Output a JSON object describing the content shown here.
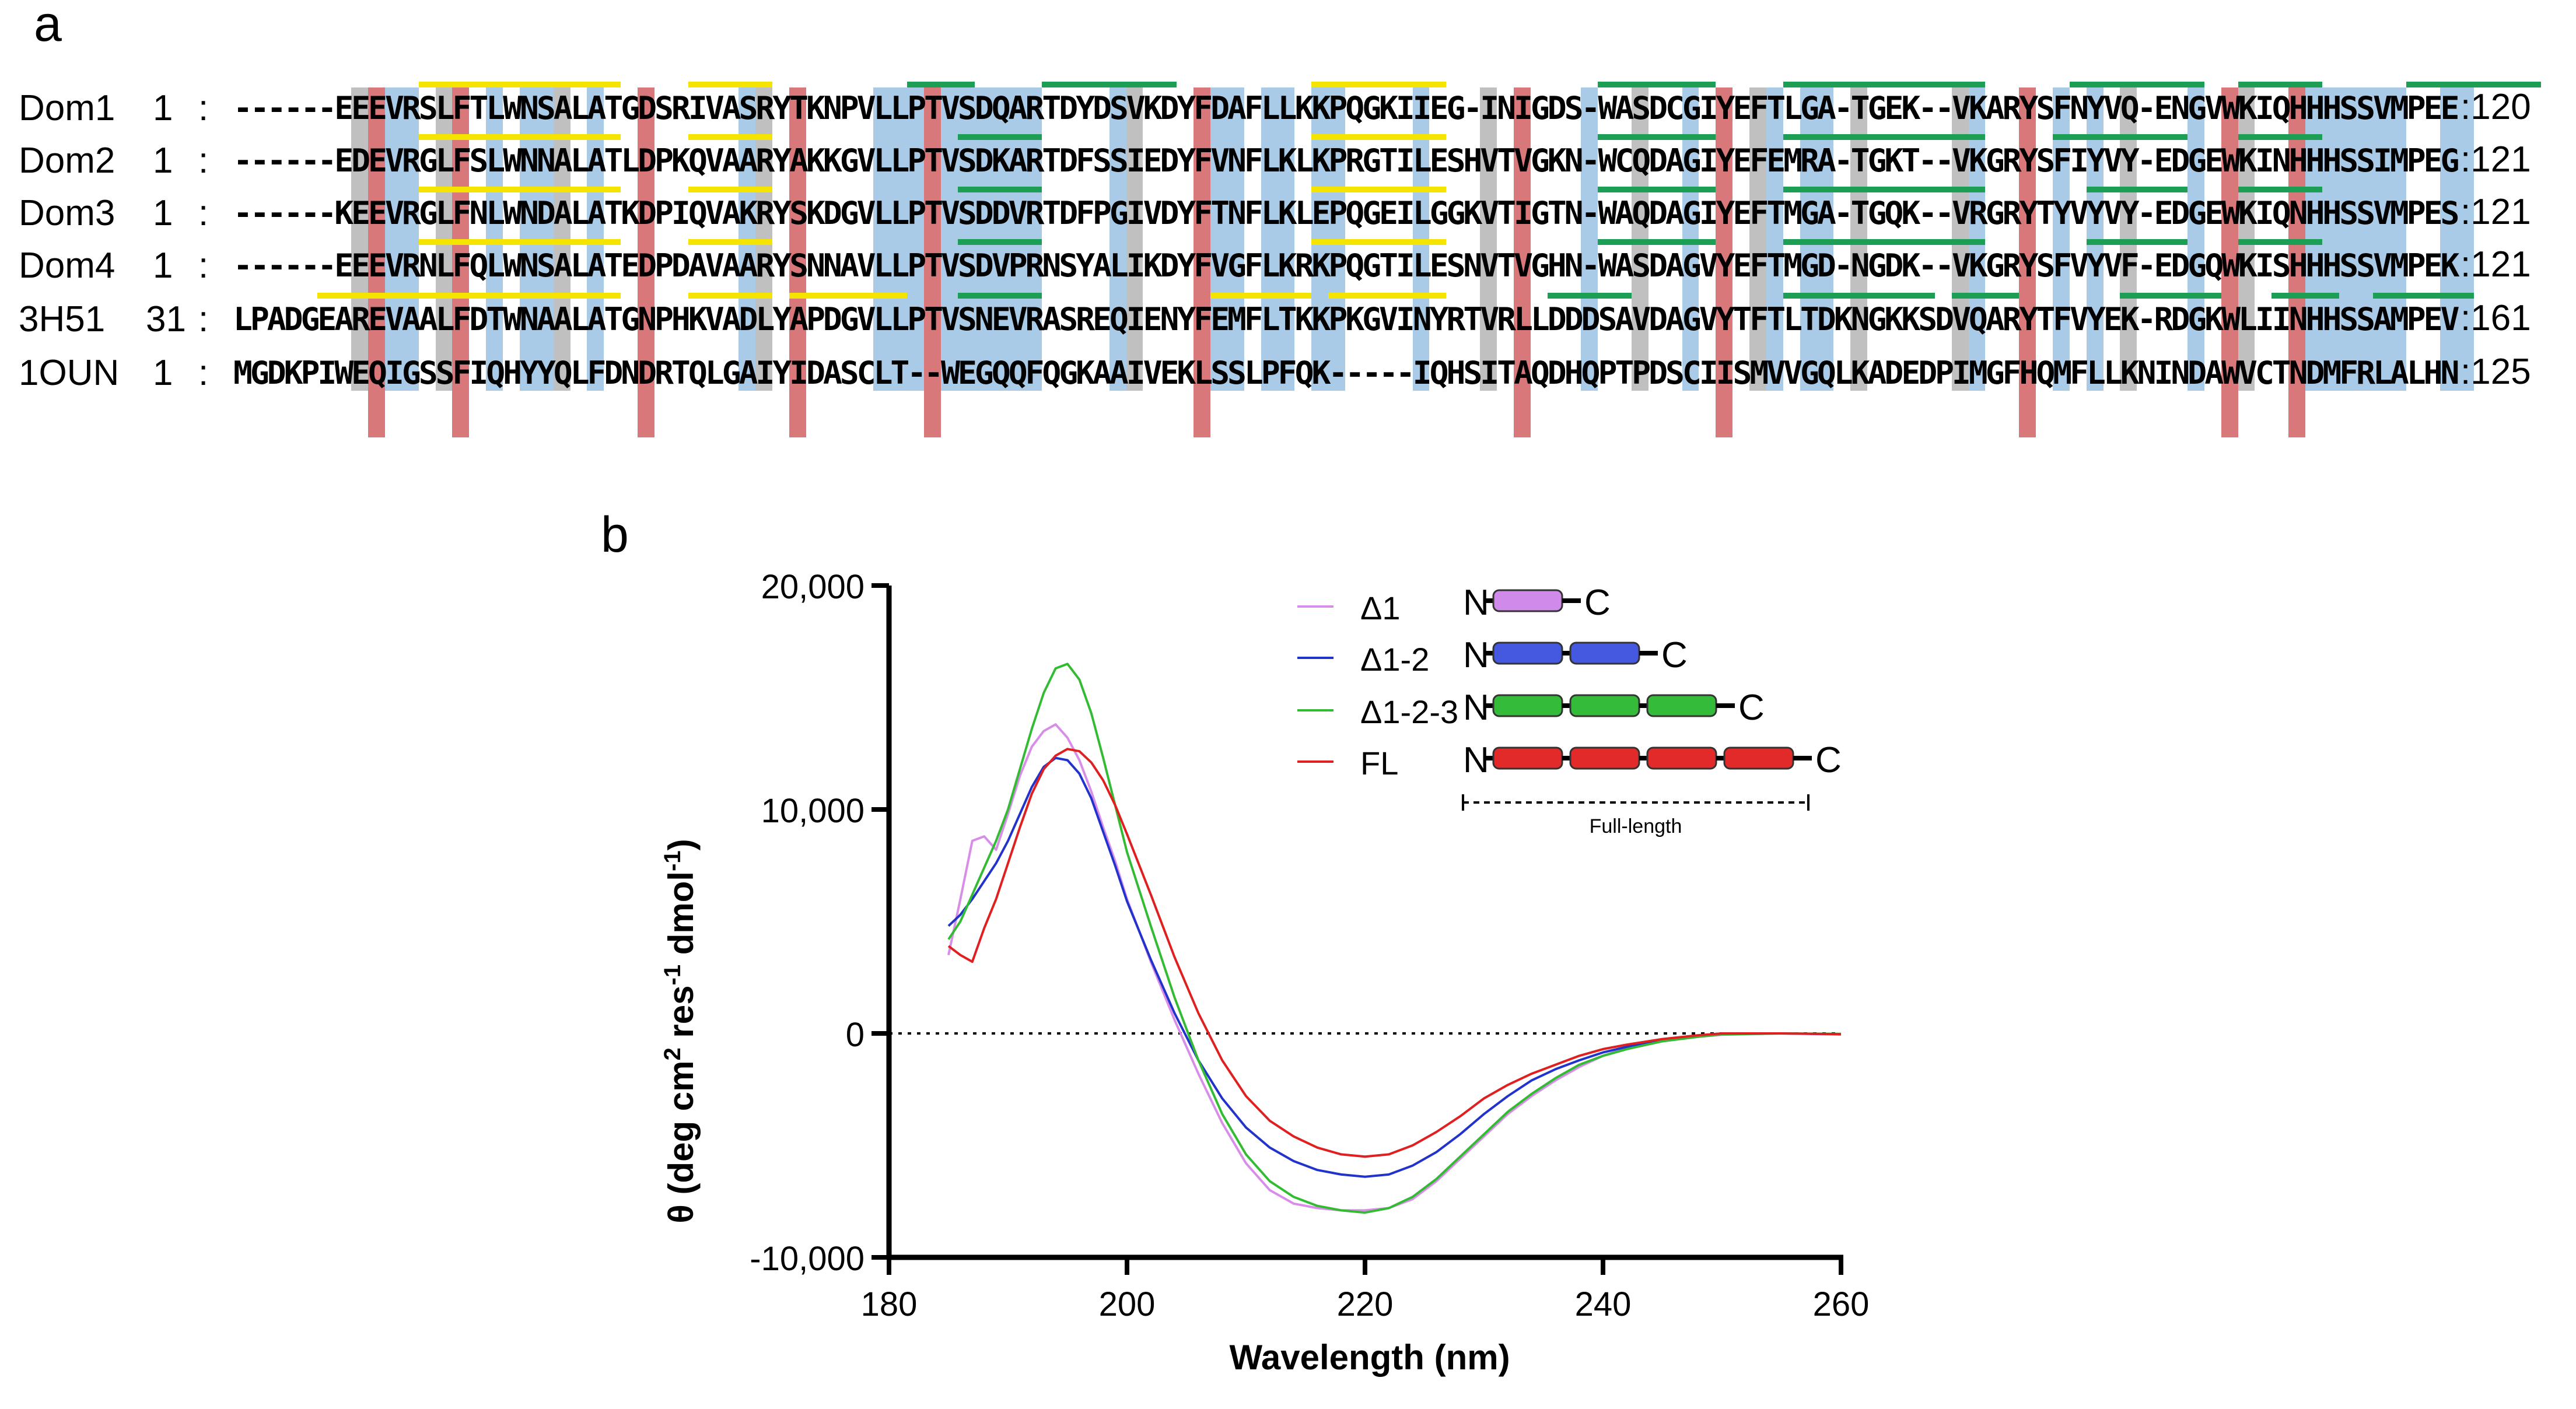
{
  "panel_labels": {
    "a": "a",
    "b": "b"
  },
  "alignment": {
    "rows": [
      {
        "name": "Dom1",
        "start": "1",
        "seq": "------EEEVRSLFTLWNSALATGDSRIVASRYTKNPVLLPTVSDQARTDYDSVKDYFDAFLLKKPQGKIIEG-INIGDS-WASDCGIYEFTLGA-TGEK--VKARYSFNYVQ-ENGVWKIQHHHSSVMPEE",
        "end": ":120"
      },
      {
        "name": "Dom2",
        "start": "1",
        "seq": "------EDEVRGLFSLWNNALATLDPKQVAARYAKKGVLLPTVSDKARTDFSSIEDYFVNFLKLKPRGTILESHVTVGKN-WCQDAGIYEFEMRA-TGKT--VKGRYSFIYVY-EDGEWKINHHHSSIMPEG",
        "end": ":121"
      },
      {
        "name": "Dom3",
        "start": "1",
        "seq": "------KEEVRGLFNLWNDALATKDPIQVAKRYSKDGVLLPTVSDDVRTDFPGIVDYFTNFLKLEPQGEILGGKVTIGTN-WAQDAGIYEFTMGA-TGQK--VRGRYTYVYVY-EDGEWKIQNHHSSVMPES",
        "end": ":121"
      },
      {
        "name": "Dom4",
        "start": "1",
        "seq": "------EEEVRNLFQLWNSALATEDPDAVAARYSNNAVLLPTVSDVPRNSYALIKDYFVGFLKRKPQGTILESNVTVGHN-WASDAGVYEFTMGD-NGDK--VKGRYSFVYVF-EDGQWKISHHHSSVMPEK",
        "end": ":121"
      },
      {
        "name": "3H51",
        "start": "31",
        "seq": "LPADGEAREVAALFDTWNAALATGNPHKVADLYAPDGVLLPTVSNEVRASREQIENYFEMFLTKKPKGVINYRTVRLLDDDSAVDAGVYTFTLTDKNGKKSDVQARYTFVYEK-RDGKWLIINHHSSAMPEV",
        "end": ":161"
      },
      {
        "name": "1OUN",
        "start": "1",
        "seq": "MGDKPIWEQIGSSFIQHYYQLFDNDRTQLGAIYIDASCLT--WEGQQFQGKAAIVEKLSSLPFQK-----IQHSITAQDHQPTPDSCIISMVVGQLKADEDPIMGFHQMFLLKNINDAWVCTNDMFRLALHN",
        "end": ":125"
      }
    ],
    "colors": {
      "helix": "#f5e400",
      "strand": "#1d9e55",
      "blue": "#a9cbe8",
      "red": "#d9787a",
      "grey": "#c0c0c0"
    }
  },
  "chart_data": {
    "type": "line",
    "title": "",
    "xlabel": "Wavelength (nm)",
    "ylabel": "θ (deg cm² res⁻¹ dmol⁻¹)",
    "ylabel_parts": {
      "theta": "θ",
      "open": " (deg cm",
      "sup1": "2",
      "mid": " res",
      "sup2": "-1",
      "mid2": " dmol",
      "sup3": "-1",
      "close": ")"
    },
    "xlim": [
      180,
      260
    ],
    "ylim": [
      -10000,
      20000
    ],
    "xticks": [
      180,
      200,
      220,
      240,
      260
    ],
    "xtick_labels": [
      "180",
      "200",
      "220",
      "240",
      "260"
    ],
    "yticks": [
      -10000,
      0,
      10000,
      20000
    ],
    "ytick_labels": [
      "-10,000",
      "0",
      "10,000",
      "20,000"
    ],
    "zero_line": true,
    "legend_position": "top-right",
    "series": [
      {
        "name": "Δ1",
        "color": "#d88ee8",
        "x": [
          185,
          186,
          187,
          188,
          189,
          190,
          191,
          192,
          193,
          194,
          195,
          196,
          197,
          198,
          199,
          200,
          202,
          204,
          206,
          208,
          210,
          212,
          214,
          216,
          218,
          220,
          222,
          224,
          226,
          228,
          230,
          232,
          234,
          236,
          238,
          240,
          242,
          245,
          248,
          250,
          255,
          260
        ],
        "values": [
          3500,
          6000,
          8600,
          8800,
          8200,
          9800,
          11500,
          12800,
          13500,
          13800,
          13200,
          12200,
          10800,
          9200,
          7700,
          6000,
          3200,
          600,
          -1800,
          -4000,
          -5800,
          -7000,
          -7600,
          -7800,
          -7900,
          -7900,
          -7800,
          -7400,
          -6600,
          -5600,
          -4600,
          -3600,
          -2800,
          -2100,
          -1500,
          -1000,
          -650,
          -350,
          -150,
          -60,
          0,
          -50
        ]
      },
      {
        "name": "Δ1-2",
        "color": "#2233cc",
        "x": [
          185,
          186,
          187,
          188,
          189,
          190,
          191,
          192,
          193,
          194,
          195,
          196,
          197,
          198,
          199,
          200,
          202,
          204,
          206,
          208,
          210,
          212,
          214,
          216,
          218,
          220,
          222,
          224,
          226,
          228,
          230,
          232,
          234,
          236,
          238,
          240,
          242,
          245,
          248,
          250,
          255,
          260
        ],
        "values": [
          4800,
          5300,
          6000,
          6800,
          7600,
          8600,
          9800,
          11000,
          11900,
          12300,
          12200,
          11600,
          10500,
          9000,
          7500,
          5900,
          3300,
          900,
          -1200,
          -2900,
          -4200,
          -5100,
          -5700,
          -6100,
          -6300,
          -6400,
          -6300,
          -5900,
          -5300,
          -4500,
          -3600,
          -2800,
          -2100,
          -1600,
          -1200,
          -850,
          -600,
          -300,
          -100,
          0,
          0,
          -30
        ]
      },
      {
        "name": "Δ1-2-3",
        "color": "#33bb33",
        "x": [
          185,
          186,
          187,
          188,
          189,
          190,
          191,
          192,
          193,
          194,
          195,
          196,
          197,
          198,
          199,
          200,
          202,
          204,
          206,
          208,
          210,
          212,
          214,
          216,
          218,
          220,
          222,
          224,
          226,
          228,
          230,
          232,
          234,
          236,
          238,
          240,
          242,
          245,
          248,
          250,
          255,
          260
        ],
        "values": [
          4200,
          5000,
          6200,
          7400,
          8600,
          10000,
          11800,
          13600,
          15200,
          16300,
          16500,
          15800,
          14300,
          12300,
          10200,
          8100,
          4800,
          1600,
          -1200,
          -3600,
          -5400,
          -6600,
          -7300,
          -7700,
          -7900,
          -8000,
          -7800,
          -7300,
          -6500,
          -5500,
          -4500,
          -3500,
          -2700,
          -2000,
          -1400,
          -1000,
          -700,
          -350,
          -150,
          -40,
          0,
          -20
        ]
      },
      {
        "name": "FL",
        "color": "#e02020",
        "x": [
          185,
          186,
          187,
          188,
          189,
          190,
          191,
          192,
          193,
          194,
          195,
          196,
          197,
          198,
          199,
          200,
          202,
          204,
          206,
          208,
          210,
          212,
          214,
          216,
          218,
          220,
          222,
          224,
          226,
          228,
          230,
          232,
          234,
          236,
          238,
          240,
          242,
          245,
          248,
          250,
          255,
          260
        ],
        "values": [
          3900,
          3500,
          3200,
          4700,
          6000,
          7600,
          9200,
          10700,
          11800,
          12400,
          12700,
          12600,
          12100,
          11300,
          10200,
          8900,
          6200,
          3400,
          900,
          -1200,
          -2800,
          -3900,
          -4600,
          -5100,
          -5400,
          -5500,
          -5400,
          -5000,
          -4400,
          -3700,
          -2900,
          -2300,
          -1800,
          -1400,
          -1000,
          -700,
          -500,
          -250,
          -80,
          0,
          0,
          -30
        ]
      }
    ],
    "inset": {
      "n_label": "N",
      "c_label": "C",
      "footer": "Full-length",
      "constructs": [
        {
          "name": "Δ1",
          "domains": 1,
          "color": "#d08bea"
        },
        {
          "name": "Δ1-2",
          "domains": 2,
          "color": "#4458e0"
        },
        {
          "name": "Δ1-2-3",
          "domains": 3,
          "color": "#35bb3a"
        },
        {
          "name": "FL",
          "domains": 4,
          "color": "#e22a2a"
        }
      ]
    }
  }
}
